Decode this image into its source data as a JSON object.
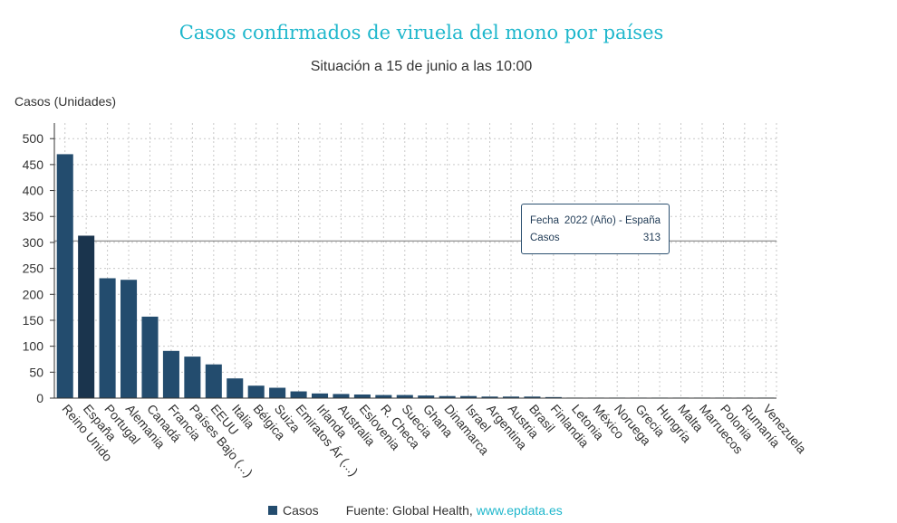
{
  "chart_data": {
    "type": "bar",
    "title": "Casos confirmados de viruela del mono por países",
    "subtitle": "Situación a 15 de junio a las 10:00",
    "ylabel": "Casos (Unidades)",
    "ylim": [
      0,
      530
    ],
    "yticks": [
      0,
      50,
      100,
      150,
      200,
      250,
      300,
      350,
      400,
      450,
      500
    ],
    "grid": true,
    "categories": [
      "Reino Unido",
      "España",
      "Portugal",
      "Alemania",
      "Canadá",
      "Francia",
      "Países Bajo (...)",
      "EEUU",
      "Italia",
      "Bélgica",
      "Suiza",
      "Emiratos Ár (...)",
      "Irlanda",
      "Australia",
      "Eslovenia",
      "R. Checa",
      "Suecia",
      "Ghana",
      "Dinamarca",
      "Israel",
      "Argentina",
      "Austria",
      "Brasil",
      "Finlandia",
      "Letonia",
      "México",
      "Noruega",
      "Grecia",
      "Hungría",
      "Malta",
      "Marruecos",
      "Polonia",
      "Rumanía",
      "Venezuela"
    ],
    "series": [
      {
        "name": "Casos",
        "values": [
          470,
          313,
          231,
          228,
          157,
          91,
          80,
          65,
          38,
          24,
          20,
          13,
          9,
          8,
          7,
          6,
          6,
          5,
          4,
          4,
          3,
          3,
          3,
          2,
          1,
          1,
          1,
          1,
          1,
          1,
          1,
          1,
          1,
          1
        ]
      }
    ],
    "highlight_index": 1,
    "bar_color": "#234c6e",
    "highlight_color": "#1a344d",
    "reference_line_value": 303,
    "tooltip": {
      "fecha_label": "Fecha",
      "fecha_value": "2022 (Año) - España",
      "casos_label": "Casos",
      "casos_value": "313"
    },
    "legend": {
      "label": "Casos",
      "placement": "bottom"
    }
  },
  "source": {
    "label": "Fuente: Global Health,",
    "link": "www.epdata.es"
  }
}
